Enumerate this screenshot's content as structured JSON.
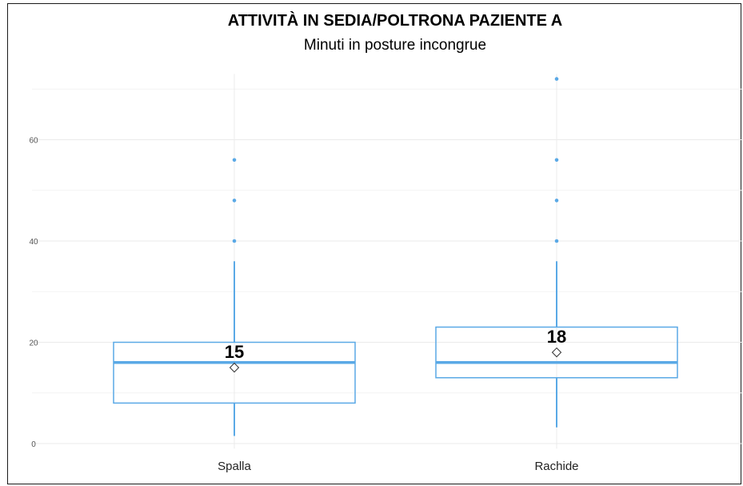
{
  "chart_data": {
    "type": "boxplot",
    "title": "ATTIVITÀ IN SEDIA/POLTRONA PAZIENTE A",
    "subtitle": "Minuti in posture incongrue",
    "xlabel": "",
    "ylabel": "",
    "ylim": [
      -1,
      73
    ],
    "yticks": [
      0,
      20,
      40,
      60
    ],
    "grid": true,
    "box_color": "#5aa9e6",
    "categories": [
      "Spalla",
      "Rachide"
    ],
    "boxes": [
      {
        "category": "Spalla",
        "whisker_low": 1.5,
        "q1": 8,
        "median": 16,
        "q3": 20,
        "whisker_high": 36,
        "mean": 15,
        "mean_label": "15",
        "outliers": [
          40,
          48,
          56
        ]
      },
      {
        "category": "Rachide",
        "whisker_low": 3.2,
        "q1": 13,
        "median": 16,
        "q3": 23,
        "whisker_high": 36,
        "mean": 18,
        "mean_label": "18",
        "outliers": [
          40,
          48,
          56,
          72
        ]
      }
    ]
  }
}
